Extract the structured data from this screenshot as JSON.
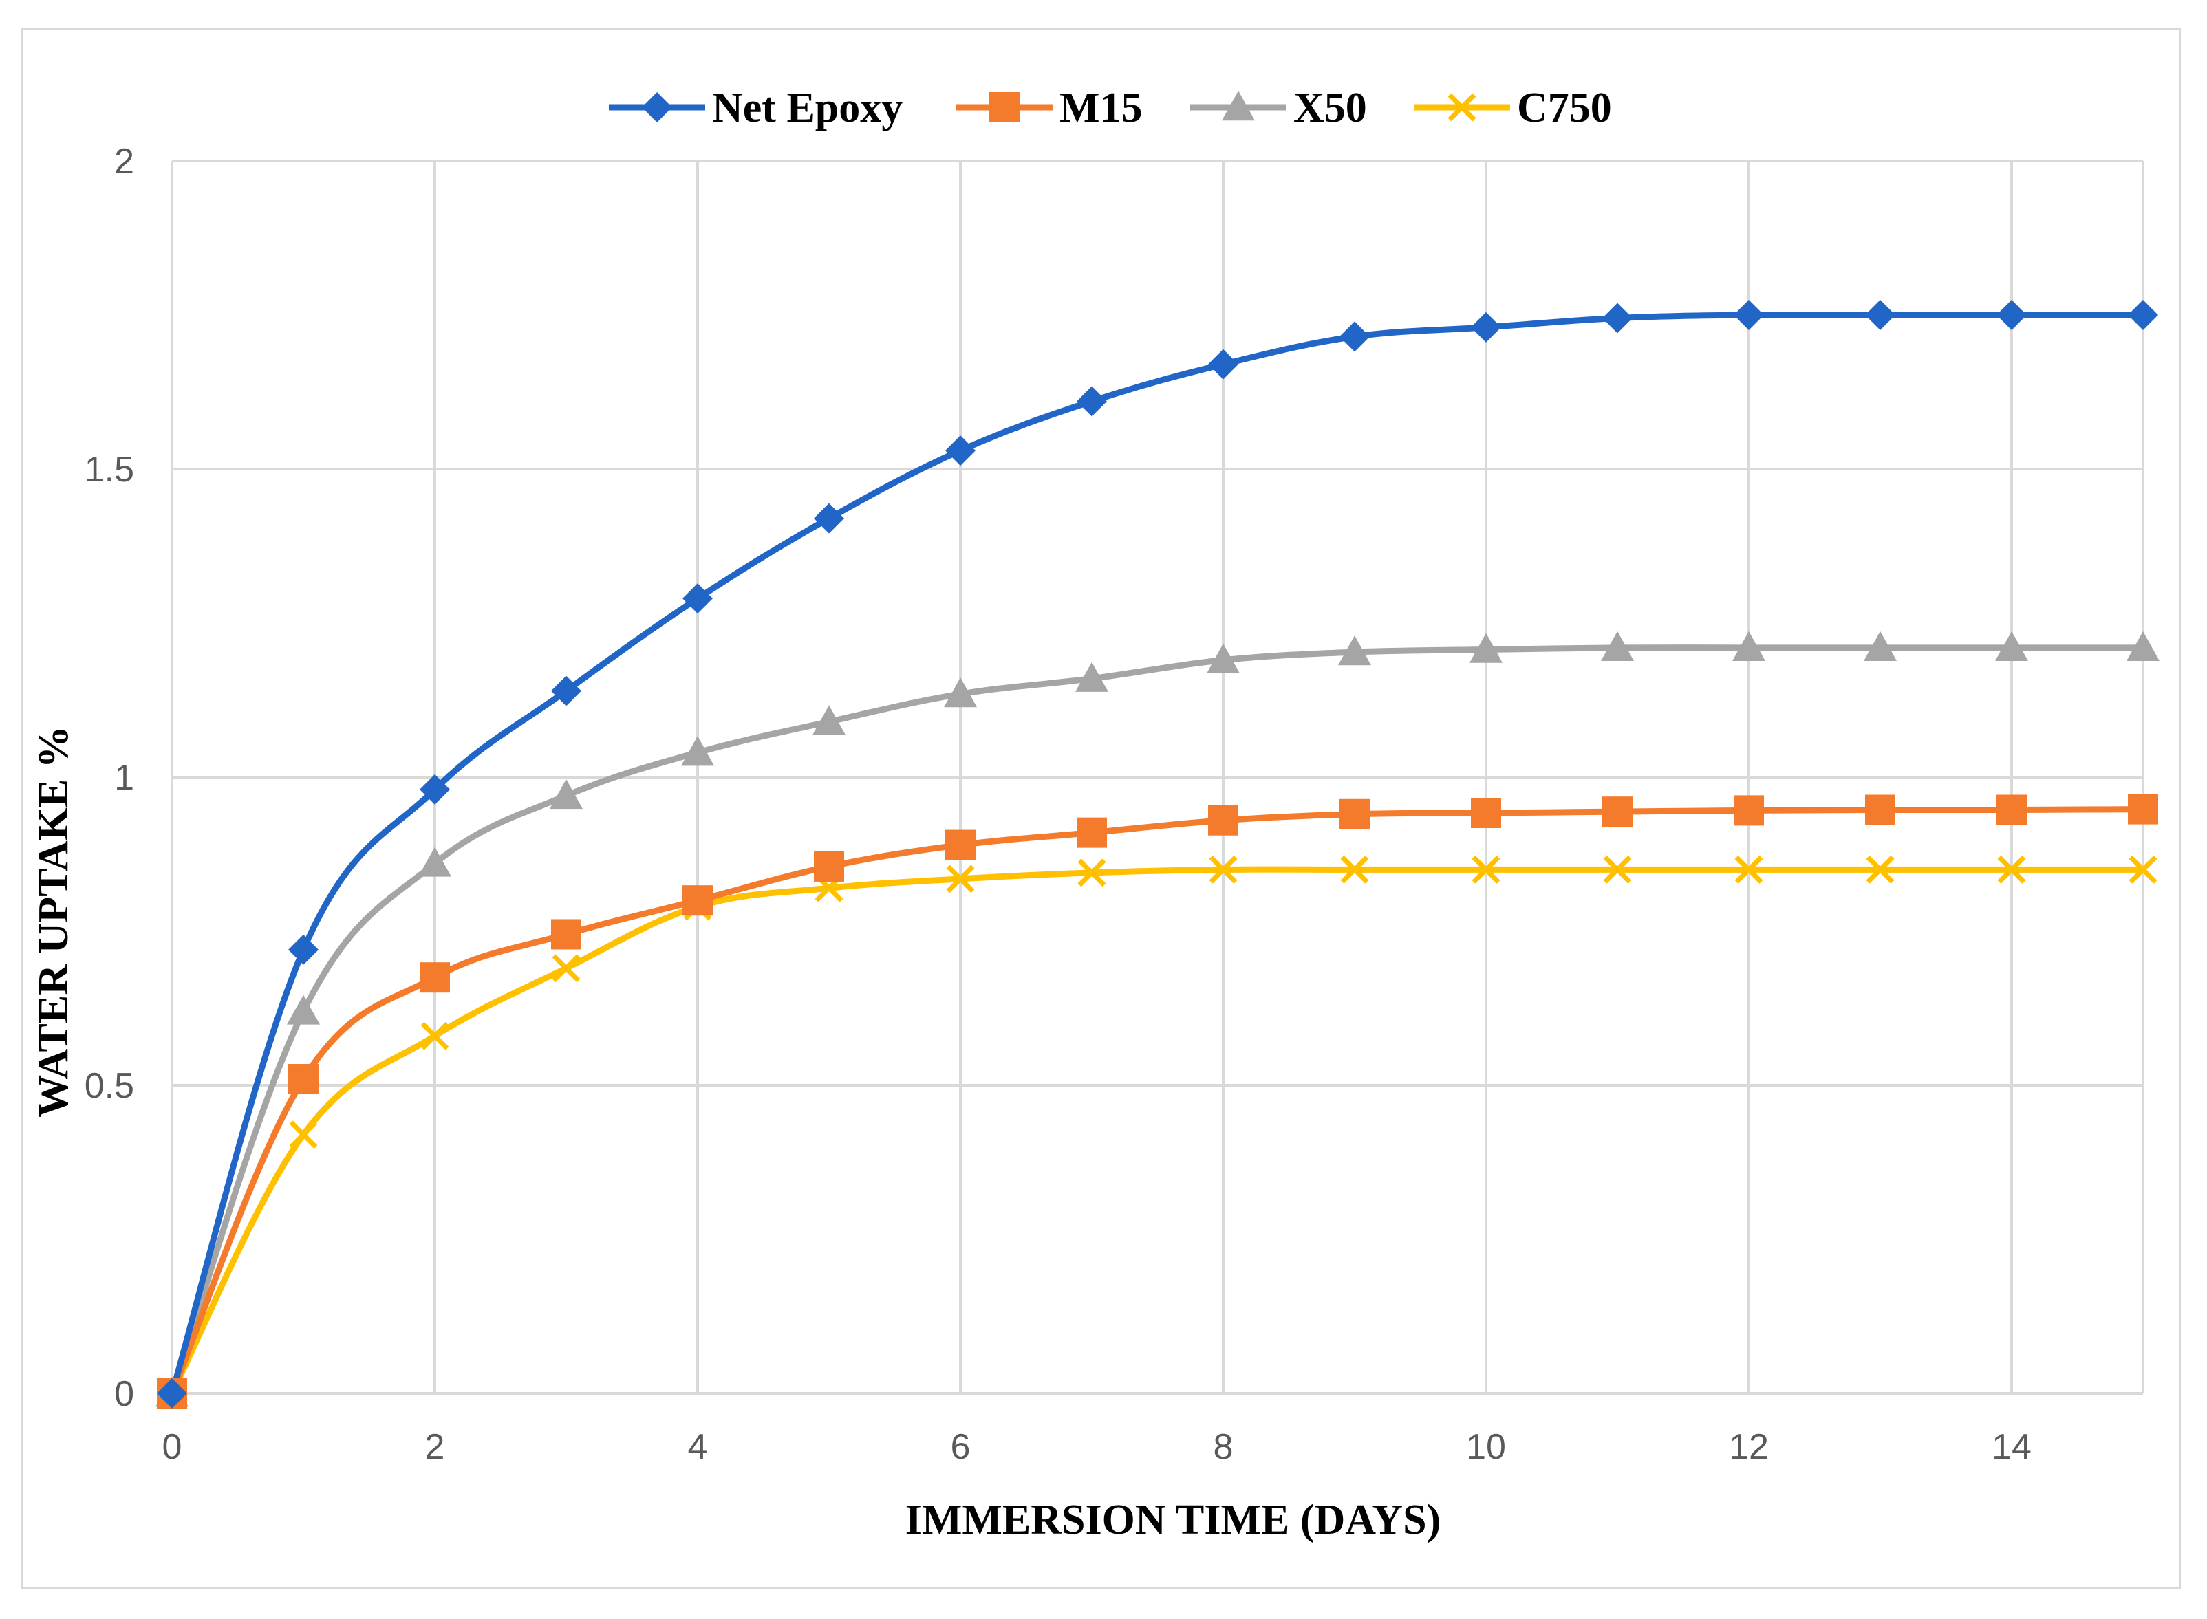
{
  "chart_data": {
    "type": "line",
    "title": "",
    "xlabel": "IMMERSION TIME (DAYS)",
    "ylabel": "WATER UPTAKE %",
    "xlim": [
      0,
      15
    ],
    "ylim": [
      0,
      2
    ],
    "xticks": [
      0,
      2,
      4,
      6,
      8,
      10,
      12,
      14
    ],
    "yticks": [
      0,
      0.5,
      1,
      1.5,
      2
    ],
    "xtick_labels": [
      "0",
      "2",
      "4",
      "6",
      "8",
      "10",
      "12",
      "14"
    ],
    "ytick_labels": [
      "0",
      "0.5",
      "1",
      "1.5",
      "2"
    ],
    "grid": true,
    "legend_position": "top-center",
    "x": [
      0,
      1,
      2,
      3,
      4,
      5,
      6,
      7,
      8,
      9,
      10,
      11,
      12,
      13,
      14,
      15
    ],
    "series": [
      {
        "name": "Net Epoxy",
        "color": "#2166c6",
        "marker": "diamond",
        "values": [
          0,
          0.72,
          0.98,
          1.14,
          1.29,
          1.42,
          1.53,
          1.61,
          1.67,
          1.715,
          1.73,
          1.745,
          1.75,
          1.75,
          1.75,
          1.75
        ]
      },
      {
        "name": "M15",
        "color": "#f47a2c",
        "marker": "square",
        "values": [
          0,
          0.51,
          0.675,
          0.745,
          0.8,
          0.855,
          0.89,
          0.91,
          0.93,
          0.94,
          0.942,
          0.944,
          0.946,
          0.947,
          0.947,
          0.948
        ]
      },
      {
        "name": "X50",
        "color": "#a5a5a5",
        "marker": "triangle",
        "values": [
          0,
          0.62,
          0.86,
          0.97,
          1.04,
          1.09,
          1.135,
          1.16,
          1.19,
          1.203,
          1.207,
          1.21,
          1.21,
          1.21,
          1.21,
          1.21
        ]
      },
      {
        "name": "C750",
        "color": "#ffc000",
        "marker": "x",
        "values": [
          0,
          0.42,
          0.58,
          0.69,
          0.79,
          0.82,
          0.835,
          0.845,
          0.85,
          0.85,
          0.85,
          0.85,
          0.85,
          0.85,
          0.85,
          0.85
        ]
      }
    ]
  }
}
